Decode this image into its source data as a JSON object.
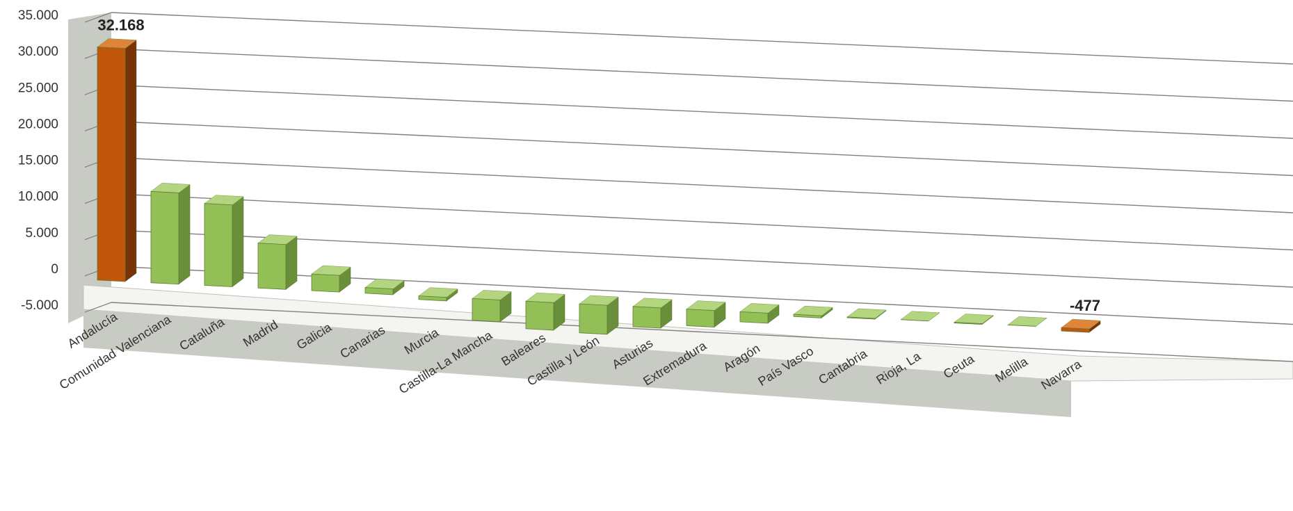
{
  "chart_data": {
    "type": "bar",
    "style": "3d-perspective",
    "categories": [
      "Andalucía",
      "Comunidad Valenciana",
      "Cataluña",
      "Madrid",
      "Galicia",
      "Canarias",
      "Murcia",
      "Castilla-La Mancha",
      "Baleares",
      "Castilla y León",
      "Asturias",
      "Extremadura",
      "Aragón",
      "País Vasco",
      "Cantabria",
      "Rioja, La",
      "Ceuta",
      "Melilla",
      "Navarra"
    ],
    "values": [
      32168,
      12600,
      11300,
      6200,
      2300,
      800,
      -500,
      -3000,
      -3800,
      -4000,
      -2800,
      -2300,
      -1400,
      -300,
      -100,
      0,
      -100,
      -10,
      -477
    ],
    "y_ticks": [
      "35.000",
      "30.000",
      "25.000",
      "20.000",
      "15.000",
      "10.000",
      "5.000",
      "0",
      "-5.000"
    ],
    "ylim": [
      -5000,
      35000
    ],
    "data_labels": [
      {
        "category": "Andalucía",
        "text": "32.168"
      },
      {
        "category": "Navarra",
        "text": "-477"
      }
    ],
    "highlight_categories": [
      "Andalucía",
      "Navarra"
    ],
    "colors": {
      "bar_front": "#92c057",
      "bar_top": "#b3d57f",
      "bar_side": "#6a8f3a",
      "highlight_front": "#c0560c",
      "highlight_top": "#e0843a",
      "highlight_side": "#7a3208",
      "gridline": "#808080",
      "back_wall": "#ffffff",
      "side_wall": "#c8cbc4",
      "floor": "#f4f5f1"
    },
    "grid": true,
    "legend": "none"
  }
}
